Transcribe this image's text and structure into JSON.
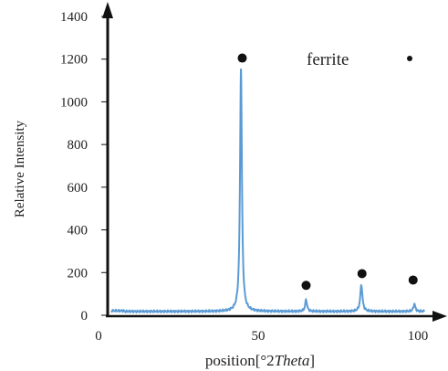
{
  "chart_data": {
    "type": "line",
    "xlabel_prefix": "position[°2",
    "xlabel_italic": "Theta",
    "xlabel_suffix": "]",
    "ylabel": "Relative Intensity",
    "xlim": [
      0,
      105
    ],
    "ylim": [
      0,
      1400
    ],
    "x_ticks": [
      "0",
      "50",
      "100"
    ],
    "y_ticks": [
      "0",
      "200",
      "400",
      "600",
      "800",
      "1000",
      "1200",
      "1400"
    ],
    "legend": {
      "label": "ferrite",
      "position": "top-right"
    },
    "series_color": "#5b9bd5",
    "marker_color": "#111111",
    "background": 18,
    "peaks": [
      {
        "x": 44.6,
        "height": 1140,
        "width": 0.35
      },
      {
        "x": 65.0,
        "height": 55,
        "width": 0.35
      },
      {
        "x": 82.3,
        "height": 125,
        "width": 0.4
      },
      {
        "x": 98.9,
        "height": 35,
        "width": 0.35
      }
    ],
    "phase_markers": [
      {
        "x": 45,
        "y": 1205
      },
      {
        "x": 65,
        "y": 140
      },
      {
        "x": 82.5,
        "y": 195
      },
      {
        "x": 98.5,
        "y": 165
      }
    ]
  }
}
